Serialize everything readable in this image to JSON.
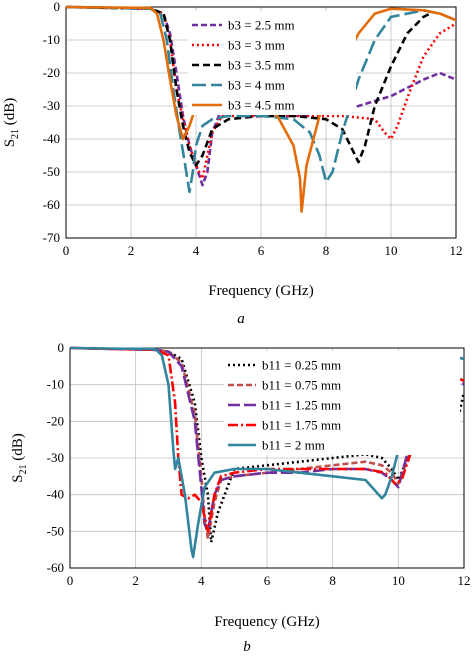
{
  "chart_data": [
    {
      "type": "line",
      "panel_label": "a",
      "xlabel": "Frequency (GHz)",
      "ylabel_main": "S",
      "ylabel_sub": "21",
      "ylabel_unit": " (dB)",
      "xlim": [
        0,
        12
      ],
      "ylim": [
        -70,
        0
      ],
      "xticks": [
        0,
        2,
        4,
        6,
        8,
        10,
        12
      ],
      "yticks": [
        0,
        -10,
        -20,
        -30,
        -40,
        -50,
        -60,
        -70
      ],
      "grid": true,
      "legend_position": "top-right",
      "series": [
        {
          "name": "b3 = 2.5 mm",
          "color": "#7030a0",
          "dash": "6,3",
          "x": [
            0,
            2.6,
            3.0,
            3.2,
            3.4,
            3.6,
            3.8,
            4.0,
            4.2,
            4.35,
            4.5,
            4.7,
            5.0,
            6.0,
            7.0,
            8.0,
            9.0,
            10.0,
            11.0,
            11.5,
            12.0
          ],
          "y": [
            0,
            -0.5,
            -2,
            -8,
            -20,
            -33,
            -42,
            -48,
            -54,
            -50,
            -38,
            -33,
            -32,
            -33,
            -33,
            -32,
            -30,
            -27,
            -22,
            -20,
            -22
          ]
        },
        {
          "name": "b3 = 3  mm",
          "color": "#ff0000",
          "dash": "2,3",
          "x": [
            0,
            2.6,
            3.0,
            3.2,
            3.4,
            3.6,
            3.8,
            4.0,
            4.2,
            4.5,
            4.8,
            5.5,
            7.0,
            8.5,
            9.5,
            9.8,
            10.0,
            10.2,
            10.6,
            11.0,
            11.5,
            12.0
          ],
          "y": [
            0,
            -0.5,
            -2,
            -10,
            -25,
            -34,
            -42,
            -48,
            -52,
            -38,
            -33,
            -33,
            -33,
            -33,
            -34,
            -38,
            -40,
            -36,
            -25,
            -15,
            -8,
            -5
          ]
        },
        {
          "name": "b3 = 3.5 mm",
          "color": "#000000",
          "dash": "7,4",
          "x": [
            0,
            2.6,
            3.0,
            3.2,
            3.4,
            3.6,
            3.8,
            4.0,
            4.2,
            4.5,
            5.0,
            6.0,
            7.0,
            8.0,
            8.5,
            8.8,
            9.0,
            9.2,
            9.5,
            10.0,
            10.5,
            11.0,
            11.2
          ],
          "y": [
            0,
            -0.5,
            -2,
            -10,
            -25,
            -36,
            -44,
            -48,
            -45,
            -37,
            -34,
            -33,
            -33,
            -34,
            -37,
            -43,
            -47,
            -42,
            -30,
            -18,
            -8,
            -3,
            -2
          ]
        },
        {
          "name": "b3 = 4 mm",
          "color": "#31859c",
          "dash": "14,5",
          "x": [
            0,
            2.6,
            2.9,
            3.1,
            3.3,
            3.5,
            3.7,
            3.8,
            3.9,
            4.0,
            4.2,
            4.5,
            5.0,
            6.0,
            7.0,
            7.5,
            7.8,
            8.0,
            8.2,
            8.5,
            9.0,
            9.5,
            10.0,
            11.0,
            11.5,
            12.0
          ],
          "y": [
            0,
            -0.5,
            -2,
            -10,
            -25,
            -38,
            -50,
            -56,
            -50,
            -42,
            -36,
            -34,
            -33,
            -33,
            -34,
            -38,
            -45,
            -53,
            -50,
            -38,
            -22,
            -10,
            -3,
            -1,
            -2,
            -4
          ]
        },
        {
          "name": "b3 = 4.5 mm",
          "color": "#e36c09",
          "dash": "",
          "x": [
            0,
            2.6,
            2.8,
            3.0,
            3.2,
            3.4,
            3.6,
            3.8,
            4.0,
            4.2,
            4.5,
            5.0,
            5.5,
            6.0,
            6.5,
            7.0,
            7.2,
            7.25,
            7.4,
            7.8,
            8.5,
            9.0,
            9.5,
            10.0,
            11.0,
            11.5,
            12.0
          ],
          "y": [
            0,
            -0.3,
            -2,
            -10,
            -22,
            -33,
            -40,
            -36,
            -30,
            -28,
            -28,
            -28.5,
            -29,
            -30,
            -33,
            -42,
            -52,
            -62,
            -48,
            -33,
            -18,
            -8,
            -2,
            -0.5,
            -1,
            -2,
            -4
          ]
        }
      ]
    },
    {
      "type": "line",
      "panel_label": "b",
      "xlabel": "Frequency (GHz)",
      "ylabel_main": "S",
      "ylabel_sub": "21",
      "ylabel_unit": " (dB)",
      "xlim": [
        0,
        12
      ],
      "ylim": [
        -60,
        0
      ],
      "xticks": [
        0,
        2,
        4,
        6,
        8,
        10,
        12
      ],
      "yticks": [
        0,
        -10,
        -20,
        -30,
        -40,
        -50,
        -60
      ],
      "grid": true,
      "legend_position": "top-right",
      "series": [
        {
          "name": "b11 = 0.25 mm",
          "color": "#000000",
          "dash": "2,3",
          "x": [
            0,
            2.6,
            3.0,
            3.4,
            3.8,
            4.0,
            4.2,
            4.3,
            4.5,
            5.0,
            6.0,
            7.0,
            8.0,
            9.0,
            9.5,
            9.8,
            10.0,
            10.3,
            10.5,
            10.8,
            11.0,
            11.2,
            11.4,
            11.6,
            11.8,
            12.0
          ],
          "y": [
            0,
            -0.5,
            -1,
            -3,
            -15,
            -30,
            -40,
            -53,
            -45,
            -33,
            -32,
            -31,
            -30,
            -29,
            -30,
            -33,
            -36,
            -30,
            -22,
            -18,
            -16,
            -18,
            -22,
            -26,
            -20,
            -12
          ]
        },
        {
          "name": "b11 = 0.75 mm",
          "color": "#c0504d",
          "dash": "6,3",
          "x": [
            0,
            2.6,
            3.0,
            3.4,
            3.8,
            4.0,
            4.1,
            4.2,
            4.4,
            4.6,
            5.0,
            6.0,
            7.0,
            8.0,
            9.0,
            9.5,
            9.8,
            10.0,
            10.3,
            10.6,
            11.0,
            11.4,
            11.8,
            12.0
          ],
          "y": [
            0,
            -0.5,
            -1,
            -4,
            -18,
            -35,
            -46,
            -52,
            -42,
            -36,
            -35,
            -34,
            -33,
            -32,
            -31,
            -32,
            -34,
            -37,
            -30,
            -18,
            -12,
            -9,
            -8,
            -9
          ]
        },
        {
          "name": "b11 = 1.25 mm",
          "color": "#7030a0",
          "dash": "12,4",
          "x": [
            0,
            2.6,
            3.0,
            3.4,
            3.8,
            4.0,
            4.1,
            4.2,
            4.4,
            4.6,
            5.0,
            6.0,
            7.0,
            8.0,
            9.0,
            9.5,
            9.8,
            10.0,
            10.3,
            10.6,
            11.0,
            11.4,
            11.8,
            12.0
          ],
          "y": [
            0,
            -0.5,
            -1,
            -5,
            -20,
            -38,
            -48,
            -50,
            -40,
            -36,
            -35,
            -34,
            -34,
            -33,
            -33,
            -34,
            -36,
            -38,
            -28,
            -15,
            -9,
            -7,
            -8,
            -10
          ]
        },
        {
          "name": "b11 = 1.75 mm",
          "color": "#ff0000",
          "dash": "10,3,2,3",
          "x": [
            0,
            2.6,
            3.0,
            3.2,
            3.3,
            3.4,
            3.6,
            3.8,
            4.0,
            4.2,
            4.4,
            4.6,
            5.0,
            6.0,
            7.0,
            8.0,
            9.0,
            9.6,
            9.9,
            10.1,
            10.4,
            10.7,
            11.0,
            11.4,
            11.8,
            12.0
          ],
          "y": [
            0,
            -0.5,
            -2,
            -15,
            -30,
            -40,
            -41,
            -40,
            -42,
            -50,
            -40,
            -35,
            -34,
            -33,
            -33,
            -33,
            -33,
            -34,
            -37,
            -36,
            -28,
            -18,
            -12,
            -9,
            -8,
            -9
          ]
        },
        {
          "name": "b11 = 2 mm",
          "color": "#31859c",
          "dash": "",
          "x": [
            0,
            2.6,
            2.8,
            3.0,
            3.15,
            3.2,
            3.3,
            3.5,
            3.7,
            3.75,
            3.9,
            4.1,
            4.4,
            5.0,
            6.0,
            7.0,
            8.0,
            9.0,
            9.3,
            9.5,
            9.6,
            9.8,
            10.0,
            10.3,
            10.6,
            11.0,
            11.4,
            11.8,
            12.0
          ],
          "y": [
            0,
            -0.3,
            -2,
            -10,
            -28,
            -33,
            -30,
            -40,
            -55,
            -57,
            -48,
            -38,
            -34,
            -33,
            -33,
            -34,
            -35,
            -36,
            -39,
            -41,
            -40,
            -35,
            -28,
            -18,
            -9,
            -4,
            -2,
            -2.5,
            -3
          ]
        }
      ]
    }
  ]
}
